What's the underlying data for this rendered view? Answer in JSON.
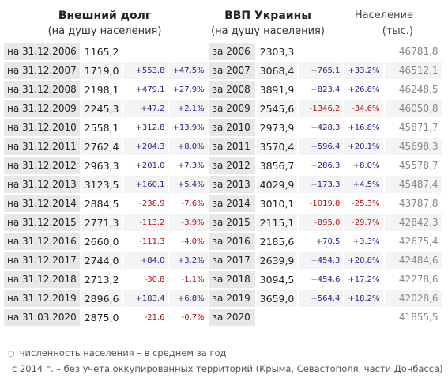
{
  "header": {
    "debt_title": "Внешний долг",
    "debt_sub": "(на душу населения)",
    "gdp_title": "ВВП Украины",
    "gdp_sub": "(на душу населения)",
    "pop_title": "Население",
    "pop_sub": "(тыс.)"
  },
  "rows": [
    {
      "debt_label": "на 31.12.2006",
      "debt": "1165,2",
      "debt_abs": "",
      "debt_pct": "",
      "gdp_label": "за 2006",
      "gdp": "2303,3",
      "gdp_abs": "",
      "gdp_pct": "",
      "pop": "46781,8"
    },
    {
      "debt_label": "на 31.12.2007",
      "debt": "1719,0",
      "debt_abs": "+553.8",
      "debt_pct": "+47.5%",
      "gdp_label": "за 2007",
      "gdp": "3068,4",
      "gdp_abs": "+765.1",
      "gdp_pct": "+33.2%",
      "pop": "46512,1"
    },
    {
      "debt_label": "на 31.12.2008",
      "debt": "2198,1",
      "debt_abs": "+479.1",
      "debt_pct": "+27.9%",
      "gdp_label": "за 2008",
      "gdp": "3891,9",
      "gdp_abs": "+823.4",
      "gdp_pct": "+26.8%",
      "pop": "46248,5"
    },
    {
      "debt_label": "на 31.12.2009",
      "debt": "2245,3",
      "debt_abs": "+47.2",
      "debt_pct": "+2.1%",
      "gdp_label": "за 2009",
      "gdp": "2545,6",
      "gdp_abs": "-1346.2",
      "gdp_pct": "-34.6%",
      "pop": "46050,8"
    },
    {
      "debt_label": "на 31.12.2010",
      "debt": "2558,1",
      "debt_abs": "+312.8",
      "debt_pct": "+13.9%",
      "gdp_label": "за 2010",
      "gdp": "2973,9",
      "gdp_abs": "+428.3",
      "gdp_pct": "+16.8%",
      "pop": "45871,7"
    },
    {
      "debt_label": "на 31.12.2011",
      "debt": "2762,4",
      "debt_abs": "+204.3",
      "debt_pct": "+8.0%",
      "gdp_label": "за 2011",
      "gdp": "3570,4",
      "gdp_abs": "+596.4",
      "gdp_pct": "+20.1%",
      "pop": "45698,3"
    },
    {
      "debt_label": "на 31.12.2012",
      "debt": "2963,3",
      "debt_abs": "+201.0",
      "debt_pct": "+7.3%",
      "gdp_label": "за 2012",
      "gdp": "3856,7",
      "gdp_abs": "+286.3",
      "gdp_pct": "+8.0%",
      "pop": "45578,7"
    },
    {
      "debt_label": "на 31.12.2013",
      "debt": "3123,5",
      "debt_abs": "+160.1",
      "debt_pct": "+5.4%",
      "gdp_label": "за 2013",
      "gdp": "4029,9",
      "gdp_abs": "+173.3",
      "gdp_pct": "+4.5%",
      "pop": "45487,4"
    },
    {
      "debt_label": "на 31.12.2014",
      "debt": "2884,5",
      "debt_abs": "-238.9",
      "debt_pct": "-7.6%",
      "gdp_label": "за 2014",
      "gdp": "3010,1",
      "gdp_abs": "-1019.8",
      "gdp_pct": "-25.3%",
      "pop": "43787,8"
    },
    {
      "debt_label": "на 31.12.2015",
      "debt": "2771,3",
      "debt_abs": "-113.2",
      "debt_pct": "-3.9%",
      "gdp_label": "за 2015",
      "gdp": "2115,1",
      "gdp_abs": "-895.0",
      "gdp_pct": "-29.7%",
      "pop": "42842,3"
    },
    {
      "debt_label": "на 31.12.2016",
      "debt": "2660,0",
      "debt_abs": "-111.3",
      "debt_pct": "-4.0%",
      "gdp_label": "за 2016",
      "gdp": "2185,6",
      "gdp_abs": "+70.5",
      "gdp_pct": "+3.3%",
      "pop": "42675,4"
    },
    {
      "debt_label": "на 31.12.2017",
      "debt": "2744,0",
      "debt_abs": "+84.0",
      "debt_pct": "+3.2%",
      "gdp_label": "за 2017",
      "gdp": "2639,9",
      "gdp_abs": "+454.3",
      "gdp_pct": "+20.8%",
      "pop": "42484,6"
    },
    {
      "debt_label": "на 31.12.2018",
      "debt": "2713,2",
      "debt_abs": "-30.8",
      "debt_pct": "-1.1%",
      "gdp_label": "за 2018",
      "gdp": "3094,5",
      "gdp_abs": "+454.6",
      "gdp_pct": "+17.2%",
      "pop": "42278,6"
    },
    {
      "debt_label": "на 31.12.2019",
      "debt": "2896,6",
      "debt_abs": "+183.4",
      "debt_pct": "+6.8%",
      "gdp_label": "за 2019",
      "gdp": "3659,0",
      "gdp_abs": "+564.4",
      "gdp_pct": "+18.2%",
      "pop": "42028,6"
    },
    {
      "debt_label": "на 31.03.2020",
      "debt": "2875,0",
      "debt_abs": "-21.6",
      "debt_pct": "-0.7%",
      "gdp_label": "за 2020",
      "gdp": "",
      "gdp_abs": "",
      "gdp_pct": "",
      "pop": "41855,5"
    }
  ],
  "notes": {
    "note1": "численность населения – в среднем за год",
    "note2": "с 2014 г. – без учета оккупированных территорий (Крыма, Севастополя, части Донбасса)"
  },
  "colors": {
    "positive": "#22228a",
    "negative": "#b01010",
    "label_bg": "#e8e8e8",
    "population_text": "#888888"
  }
}
